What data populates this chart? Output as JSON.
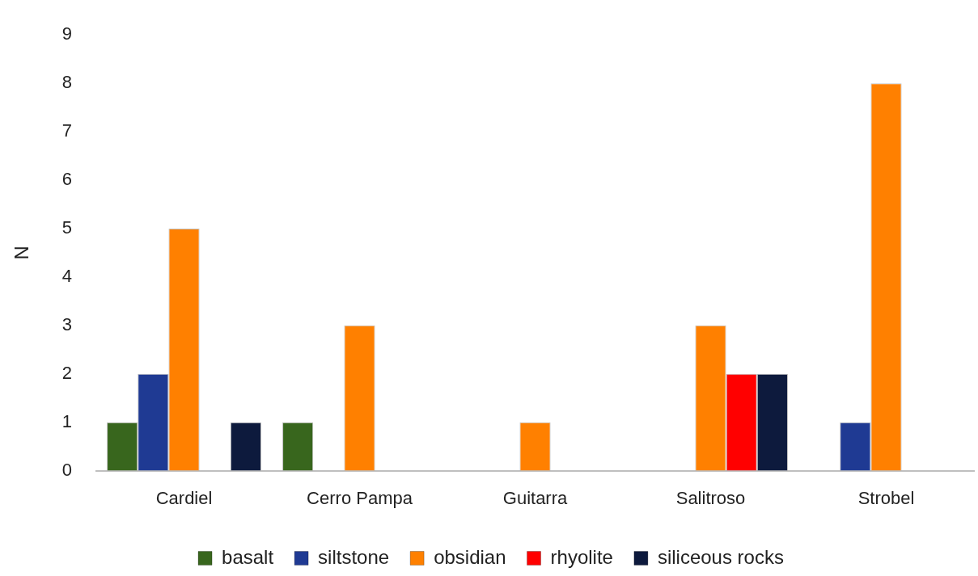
{
  "chart_data": {
    "type": "bar",
    "ylabel": "N",
    "categories": [
      "Cardiel",
      "Cerro Pampa",
      "Guitarra",
      "Salitroso",
      "Strobel"
    ],
    "series": [
      {
        "name": "basalt",
        "color": "#38661d",
        "values": [
          1,
          1,
          0,
          0,
          0
        ]
      },
      {
        "name": "siltstone",
        "color": "#1f3a93",
        "values": [
          2,
          0,
          0,
          0,
          1
        ]
      },
      {
        "name": "obsidian",
        "color": "#ff8000",
        "values": [
          5,
          3,
          1,
          3,
          8
        ]
      },
      {
        "name": "rhyolite",
        "color": "#ff0000",
        "values": [
          0,
          0,
          0,
          2,
          0
        ]
      },
      {
        "name": "siliceous rocks",
        "color": "#0d1a3d",
        "values": [
          1,
          0,
          0,
          2,
          0
        ]
      }
    ],
    "ylim": [
      0,
      9
    ],
    "yticks": [
      0,
      1,
      2,
      3,
      4,
      5,
      6,
      7,
      8,
      9
    ],
    "grid": false,
    "legend": "bottom"
  }
}
